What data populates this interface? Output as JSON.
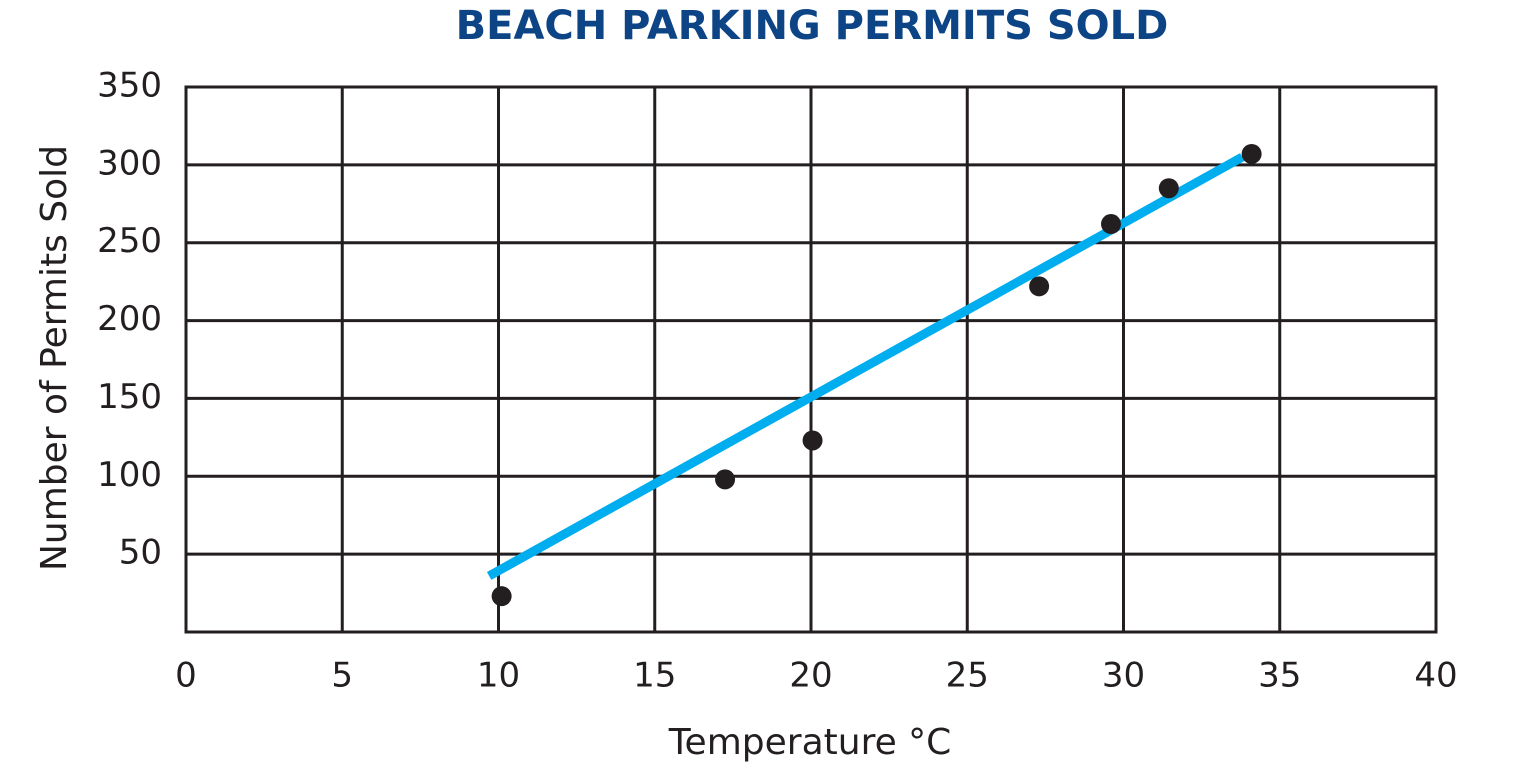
{
  "chart_data": {
    "type": "scatter",
    "title": "BEACH PARKING PERMITS SOLD",
    "x_label": "Temperature °C",
    "y_label": "Number of Permits Sold",
    "x": [
      10.1,
      17.25,
      20.05,
      27.3,
      29.6,
      31.45,
      34.1
    ],
    "y": [
      23,
      98,
      123,
      222,
      262,
      285,
      307
    ],
    "color": "#231f20",
    "trend_line": {
      "x": [
        9.7,
        33.8
      ],
      "y": [
        36,
        305
      ],
      "color": "#00aeef"
    },
    "xlim": [
      0,
      40
    ],
    "xticks": [
      0,
      5,
      10,
      15,
      20,
      25,
      30,
      35,
      40
    ],
    "ylim": [
      0,
      350
    ],
    "yticks": [
      50,
      100,
      150,
      200,
      250,
      300,
      350
    ],
    "grid": true,
    "title_color": "#0d4486"
  }
}
